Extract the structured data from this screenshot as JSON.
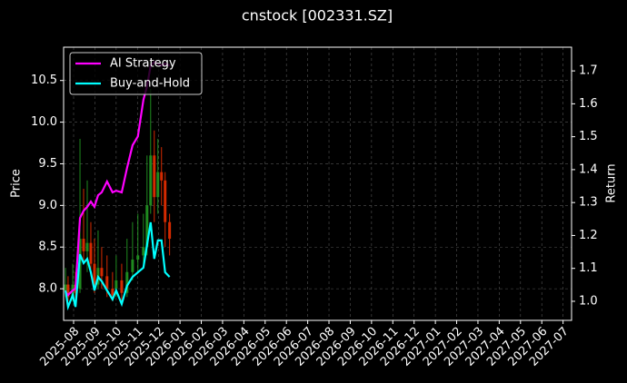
{
  "chart_data": {
    "type": "candlestick",
    "title": "cnstock [002331.SZ]",
    "ylabel": "Price",
    "y2label": "Return",
    "x": [
      -0.38,
      -0.26,
      -0.04,
      0.09,
      0.3,
      0.47,
      0.64,
      0.81,
      0.98,
      1.15,
      1.32,
      1.57,
      1.83,
      2.0,
      2.26,
      2.51,
      2.77,
      3.02,
      3.28,
      3.45,
      3.62,
      3.79,
      3.96,
      4.13,
      4.3,
      4.51
    ],
    "open": [
      7.98,
      8.05,
      7.9,
      8.05,
      8.0,
      8.6,
      8.45,
      8.55,
      8.3,
      8.05,
      8.25,
      8.15,
      8.0,
      8.0,
      8.1,
      7.95,
      8.2,
      8.35,
      8.4,
      8.5,
      9.0,
      9.6,
      9.1,
      9.4,
      9.3,
      8.8
    ],
    "high": [
      8.25,
      8.15,
      8.3,
      8.2,
      9.8,
      9.2,
      9.3,
      8.8,
      8.6,
      8.7,
      8.5,
      8.4,
      8.2,
      8.4,
      8.3,
      8.6,
      8.8,
      8.9,
      8.9,
      9.6,
      10.4,
      9.9,
      9.8,
      9.7,
      9.4,
      8.9
    ],
    "low": [
      7.9,
      7.85,
      7.85,
      7.88,
      7.95,
      8.3,
      8.2,
      8.15,
      7.95,
      8.0,
      8.0,
      7.9,
      7.85,
      7.9,
      7.85,
      7.9,
      8.1,
      8.2,
      8.3,
      8.4,
      8.9,
      8.8,
      8.9,
      9.0,
      8.5,
      8.4
    ],
    "close": [
      8.05,
      7.9,
      8.05,
      7.95,
      8.6,
      8.45,
      8.55,
      8.3,
      8.05,
      8.25,
      8.15,
      8.0,
      7.92,
      8.1,
      7.95,
      8.2,
      8.35,
      8.4,
      8.5,
      9.0,
      9.6,
      9.1,
      9.4,
      9.3,
      8.8,
      8.6
    ],
    "up_color": "#1f8a1f",
    "down_color": "#d42a00",
    "series": [
      {
        "name": "AI Strategy",
        "color": "#ff00ff",
        "axis": "y2",
        "values": [
          1.028,
          1.019,
          1.033,
          1.039,
          1.253,
          1.275,
          1.287,
          1.303,
          1.287,
          1.322,
          1.331,
          1.364,
          1.331,
          1.336,
          1.331,
          1.405,
          1.474,
          1.501,
          1.612,
          1.653,
          1.716,
          1.727,
          1.722,
          1.716,
          1.722,
          1.716
        ]
      },
      {
        "name": "Buy-and-Hold",
        "color": "#00ffff",
        "axis": "y2",
        "values": [
          1.033,
          0.983,
          1.019,
          0.983,
          1.143,
          1.116,
          1.129,
          1.088,
          1.033,
          1.074,
          1.061,
          1.033,
          1.006,
          1.033,
          0.992,
          1.047,
          1.074,
          1.088,
          1.102,
          1.171,
          1.24,
          1.129,
          1.185,
          1.185,
          1.088,
          1.074
        ]
      }
    ],
    "xlim": [
      -0.47,
      23.4
    ],
    "xticks": [
      {
        "value": 0,
        "label": "2025-08"
      },
      {
        "value": 1,
        "label": "2025-09"
      },
      {
        "value": 2,
        "label": "2025-10"
      },
      {
        "value": 3,
        "label": "2025-11"
      },
      {
        "value": 4,
        "label": "2025-12"
      },
      {
        "value": 5,
        "label": "2026-01"
      },
      {
        "value": 6,
        "label": "2026-02"
      },
      {
        "value": 7,
        "label": "2026-03"
      },
      {
        "value": 8,
        "label": "2026-04"
      },
      {
        "value": 9,
        "label": "2026-05"
      },
      {
        "value": 10,
        "label": "2026-06"
      },
      {
        "value": 11,
        "label": "2026-07"
      },
      {
        "value": 12,
        "label": "2026-08"
      },
      {
        "value": 13,
        "label": "2026-09"
      },
      {
        "value": 14,
        "label": "2026-10"
      },
      {
        "value": 15,
        "label": "2026-11"
      },
      {
        "value": 16,
        "label": "2026-12"
      },
      {
        "value": 17,
        "label": "2027-01"
      },
      {
        "value": 18,
        "label": "2027-02"
      },
      {
        "value": 19,
        "label": "2027-03"
      },
      {
        "value": 20,
        "label": "2027-04"
      },
      {
        "value": 21,
        "label": "2027-05"
      },
      {
        "value": 22,
        "label": "2027-06"
      },
      {
        "value": 23,
        "label": "2027-07"
      }
    ],
    "ylim": [
      7.62,
      10.9
    ],
    "yticks": [
      {
        "value": 8,
        "label": "8.0"
      },
      8.5,
      {
        "value": 9,
        "label": "9.0"
      },
      9.5,
      {
        "value": 10,
        "label": "10.0"
      },
      10.5
    ],
    "y2lim": [
      0.942,
      1.772
    ],
    "y2ticks": [
      {
        "value": 1,
        "label": "1.0"
      },
      1.1,
      1.2,
      1.3,
      1.4,
      1.5,
      1.6,
      1.7
    ],
    "grid": true,
    "legend": "upper left"
  }
}
